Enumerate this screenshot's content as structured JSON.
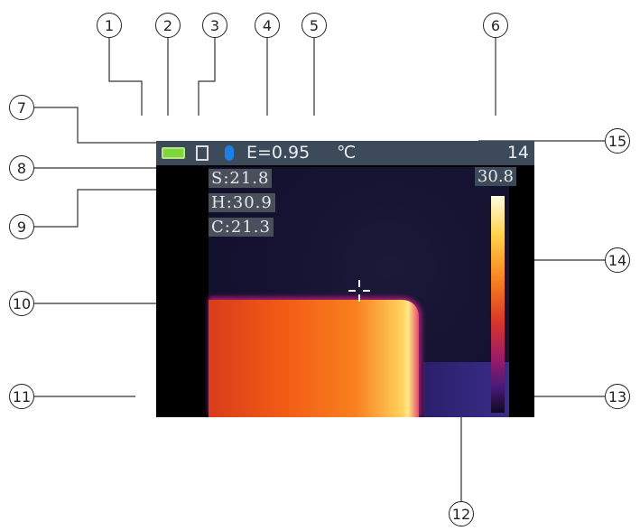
{
  "callouts": [
    "1",
    "2",
    "3",
    "4",
    "5",
    "6",
    "7",
    "8",
    "9",
    "10",
    "11",
    "12",
    "13",
    "14",
    "15"
  ],
  "status_bar": {
    "emissivity": "E=0.95",
    "unit": "℃",
    "right_value": "14"
  },
  "readouts": {
    "s": "S:21.8",
    "h": "H:30.9",
    "c": "C:21.3"
  },
  "scale": {
    "max": "30.8"
  },
  "colors": {
    "status_bg": "#3d4a5a",
    "battery": "#7fd83a",
    "bluetooth": "#1c7fe8"
  },
  "icons": [
    "battery-icon",
    "sd-card-icon",
    "bluetooth-icon",
    "crosshair-icon"
  ]
}
